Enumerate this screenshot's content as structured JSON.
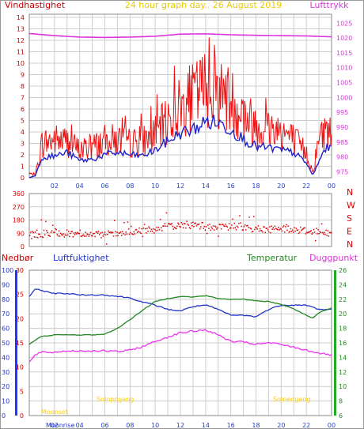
{
  "header": {
    "left_label": "Vindhastighet",
    "title": "24 hour graph day.. 26 August 2019",
    "right_label": "Lufttrykk"
  },
  "colors": {
    "wind_left": "#cc0000",
    "title": "#e8c800",
    "pressure": "#dd33dd",
    "wind_gust": "#ee1111",
    "wind_avg": "#2222cc",
    "direction": "#dd0000",
    "humidity": "#2233cc",
    "temperature": "#228822",
    "dewpoint": "#ee33ee",
    "rain_axis": "#2233ff",
    "temp_axis": "#22aa22",
    "grid": "#cccccc",
    "time_tick": "#2244cc",
    "sun": "#ffcc00"
  },
  "direction_labels": [
    "N",
    "W",
    "S",
    "E",
    "N"
  ],
  "bottom_header": {
    "rain": "Nedbør",
    "humidity": "Luftfuktighet",
    "temperature": "Temperatur",
    "dewpoint": "Duggpunkt"
  },
  "sun_labels": {
    "sunrise": "Soloppgang",
    "sunset": "Solnedgang",
    "moonrise": "Moonrise",
    "moonset": "Moonset"
  },
  "chart_data": [
    {
      "type": "line",
      "title": "24 hour graph day.. 26 August 2019",
      "x_ticks": [
        "02",
        "04",
        "06",
        "08",
        "10",
        "12",
        "14",
        "16",
        "18",
        "20",
        "22",
        "00"
      ],
      "y_left_label": "Vindhastighet",
      "y_left_ticks": [
        0,
        1,
        2,
        3,
        4,
        5,
        6,
        7,
        8,
        9,
        10,
        11,
        12,
        13,
        14
      ],
      "y_left_range": [
        0,
        14
      ],
      "y_right_label": "Lufttrykk",
      "y_right_ticks": [
        975,
        980,
        985,
        990,
        995,
        1000,
        1005,
        1010,
        1015,
        1020,
        1025
      ],
      "y_right_range": [
        973,
        1028
      ],
      "grid": true,
      "series": [
        {
          "name": "Lufttrykk",
          "axis": "right",
          "x": [
            0,
            2,
            4,
            6,
            8,
            10,
            12,
            14,
            16,
            18,
            20,
            22,
            24
          ],
          "y": [
            1021.5,
            1020.8,
            1020.3,
            1020.2,
            1020.3,
            1020.6,
            1021.3,
            1021.4,
            1021.1,
            1020.9,
            1020.8,
            1020.7,
            1020.4
          ]
        },
        {
          "axis": "left",
          "x": [
            0,
            0.5,
            1,
            2,
            3,
            4,
            5,
            6,
            7,
            8,
            9,
            10,
            11,
            12,
            13,
            14,
            15,
            16,
            17,
            18,
            19,
            20,
            21,
            22,
            22.5,
            23,
            23.5,
            24
          ],
          "y": [
            0.3,
            0.3,
            3,
            3.3,
            3.2,
            2.4,
            2.7,
            3.2,
            3.3,
            3,
            3.2,
            3.8,
            5,
            6.2,
            7,
            8,
            7.5,
            6.8,
            5.5,
            4.6,
            4.3,
            4.2,
            3.3,
            2.2,
            0.5,
            3.3,
            4.2,
            3.8
          ]
        },
        {
          "axis": "left",
          "x": [
            0,
            0.5,
            1,
            2,
            3,
            4,
            5,
            6,
            7,
            8,
            9,
            10,
            11,
            12,
            13,
            14,
            15,
            16,
            17,
            18,
            19,
            20,
            21,
            22,
            22.5,
            23,
            23.5,
            24
          ],
          "y": [
            0,
            0.2,
            1.8,
            1.9,
            2.2,
            1.5,
            1.6,
            2.0,
            2.2,
            2.0,
            1.9,
            2.4,
            3.2,
            3.9,
            4.2,
            4.9,
            4.8,
            4.2,
            3.4,
            2.7,
            2.6,
            2.4,
            2.2,
            1.3,
            0.2,
            1.4,
            2.6,
            2.5
          ]
        }
      ]
    },
    {
      "type": "scatter",
      "y_ticks": [
        360,
        270,
        180,
        90,
        0
      ],
      "y_range": [
        0,
        360
      ],
      "x": [
        0,
        1,
        2,
        3,
        4,
        5,
        6,
        7,
        8,
        9,
        10,
        11,
        12,
        13,
        14,
        15,
        16,
        17,
        18,
        19,
        20,
        21,
        22,
        23,
        24
      ],
      "y": [
        80,
        90,
        100,
        90,
        95,
        80,
        85,
        90,
        100,
        110,
        120,
        140,
        150,
        150,
        140,
        130,
        140,
        140,
        120,
        120,
        130,
        120,
        110,
        100,
        90
      ]
    },
    {
      "type": "line",
      "x_ticks": [
        "02",
        "04",
        "06",
        "08",
        "10",
        "12",
        "14",
        "16",
        "18",
        "20",
        "22",
        "00"
      ],
      "y_left_outer_ticks": [
        0,
        10,
        20,
        30,
        40,
        50,
        60,
        70,
        80,
        90,
        100
      ],
      "y_left_inner_ticks": [
        0,
        5,
        10,
        15,
        20,
        25,
        30
      ],
      "y_right_ticks": [
        6,
        8,
        10,
        12,
        14,
        16,
        18,
        20,
        22,
        24,
        26
      ],
      "y_right_range": [
        6,
        26
      ],
      "series": [
        {
          "name": "Luftfuktighet",
          "axis": "left_outer",
          "x": [
            0,
            0.5,
            1,
            2,
            3,
            4,
            5,
            6,
            7,
            8,
            9,
            10,
            11,
            12,
            13,
            14,
            15,
            16,
            17,
            18,
            19,
            20,
            21,
            22,
            23,
            24
          ],
          "y": [
            82,
            87,
            86,
            84,
            84,
            83,
            83,
            83,
            82,
            81,
            78,
            76,
            73,
            72,
            75,
            76,
            73,
            69,
            69,
            68,
            73,
            76,
            76,
            76,
            73,
            73
          ]
        },
        {
          "name": "Temperatur",
          "axis": "right",
          "x": [
            0,
            0.5,
            1,
            2,
            3,
            4,
            5,
            6,
            7,
            8,
            9,
            10,
            11,
            12,
            13,
            14,
            15,
            16,
            17,
            18,
            19,
            20,
            21,
            22,
            22.5,
            23,
            24
          ],
          "y": [
            15.8,
            16.4,
            16.9,
            17.1,
            17.1,
            17.1,
            17.1,
            17.2,
            18.0,
            19.2,
            20.5,
            21.7,
            22.1,
            22.4,
            22.3,
            22.5,
            22.1,
            22.0,
            22.0,
            21.8,
            21.7,
            21.3,
            20.7,
            19.8,
            19.4,
            20.2,
            20.8
          ]
        },
        {
          "name": "Duggpunkt",
          "axis": "right",
          "x": [
            0,
            0.5,
            1,
            2,
            3,
            4,
            5,
            6,
            7,
            8,
            9,
            10,
            11,
            12,
            13,
            14,
            15,
            16,
            17,
            18,
            19,
            20,
            21,
            22,
            23,
            24
          ],
          "y": [
            13.3,
            14.4,
            14.7,
            14.7,
            14.9,
            14.9,
            14.9,
            14.9,
            14.8,
            15.0,
            15.5,
            16.2,
            16.8,
            17.4,
            17.6,
            17.8,
            17.1,
            16.2,
            16.1,
            15.8,
            16.0,
            15.8,
            15.4,
            15.0,
            14.6,
            14.3
          ]
        }
      ]
    }
  ]
}
